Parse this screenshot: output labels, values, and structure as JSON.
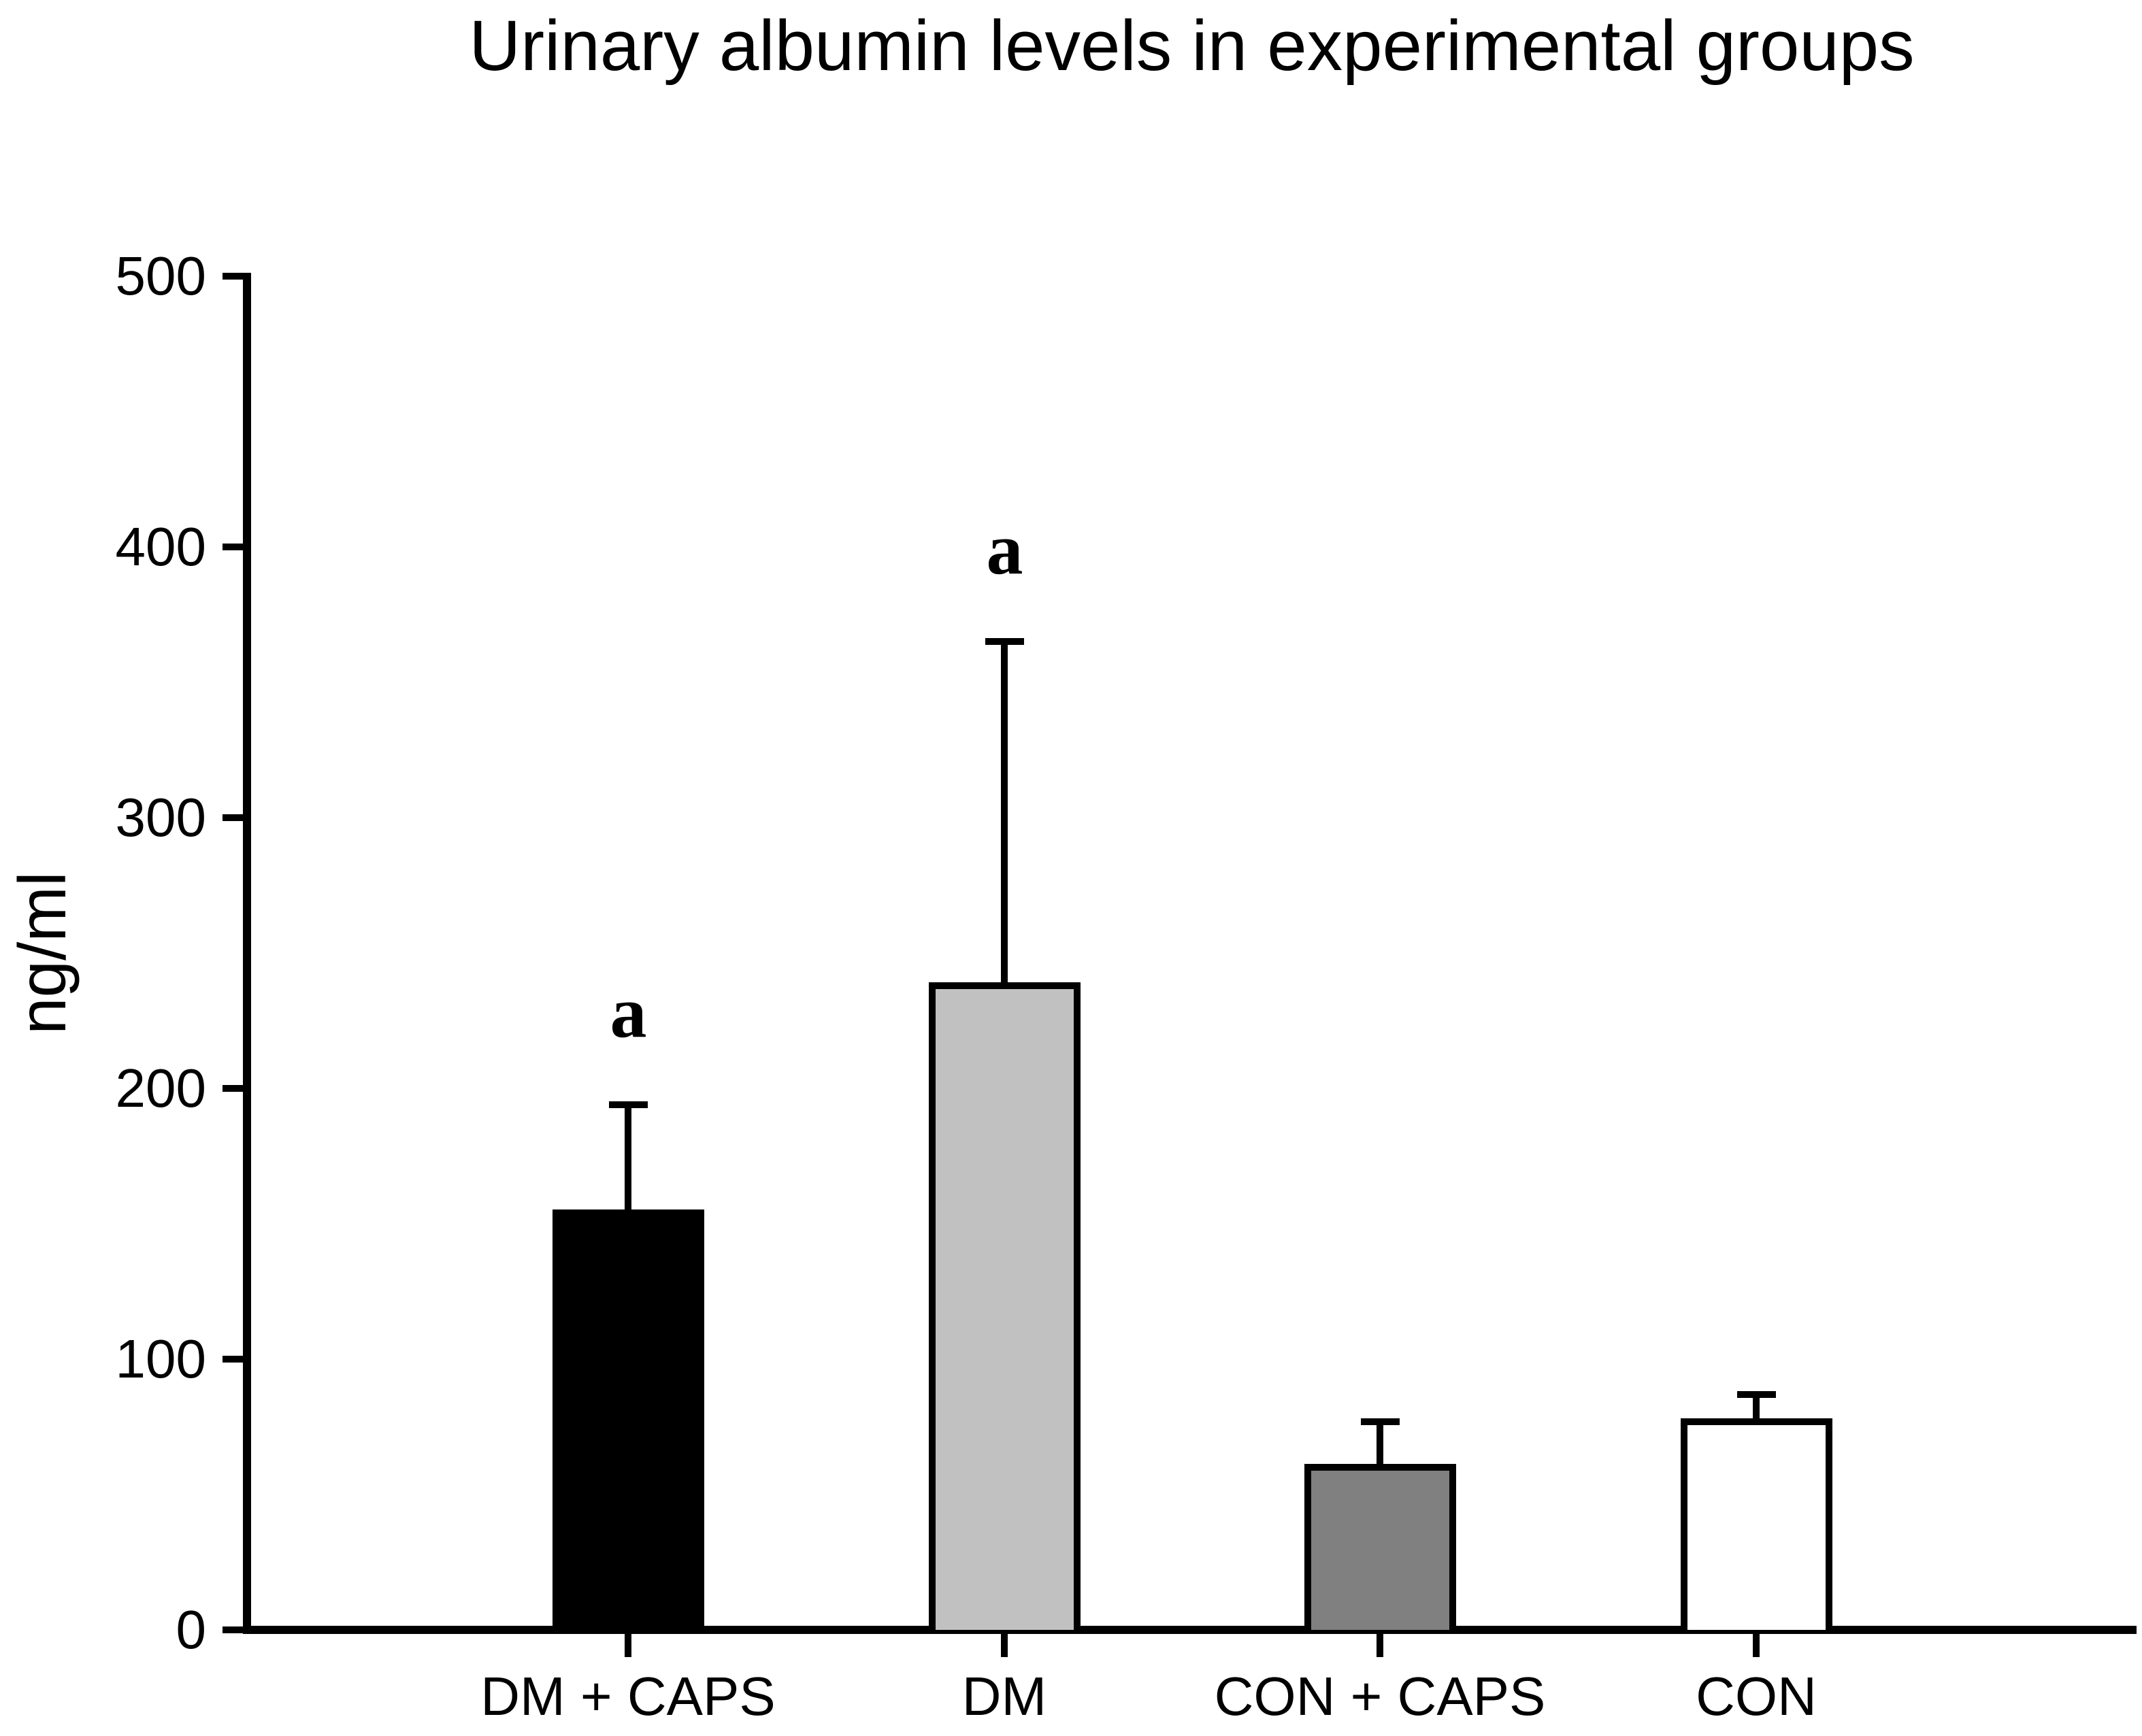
{
  "chart_data": {
    "type": "bar",
    "title": "Urinary albumin levels in experimental groups",
    "xlabel": "",
    "ylabel": "ng/ml",
    "ylim": [
      0,
      500
    ],
    "yticks": [
      0,
      100,
      200,
      300,
      400,
      500
    ],
    "grid": false,
    "legend_position": "none",
    "categories": [
      "DM + CAPS",
      "DM",
      "CON + CAPS",
      "CON"
    ],
    "values": [
      154,
      238,
      60,
      77
    ],
    "error_upper_tip": [
      194,
      365,
      77,
      87
    ],
    "error_sd": [
      40,
      127,
      17,
      10
    ],
    "annotations": [
      {
        "category_index": 0,
        "text": "a"
      },
      {
        "category_index": 1,
        "text": "a"
      }
    ],
    "bar_fill_colors": [
      "#000000",
      "#c1c1c1",
      "#808080",
      "#ffffff"
    ],
    "bar_outline_color": "#000000",
    "axis_color": "#000000",
    "text_color": "#000000"
  }
}
